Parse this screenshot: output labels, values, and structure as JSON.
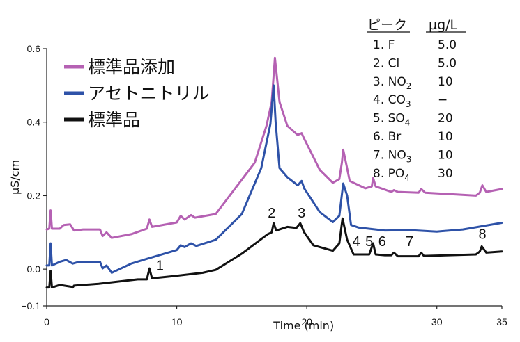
{
  "chart_data": {
    "type": "line",
    "xlabel": "Time (min)",
    "ylabel": "μS/cm",
    "xlim": [
      0,
      35
    ],
    "ylim": [
      -0.1,
      0.6
    ],
    "x_ticks": [
      {
        "value": 0,
        "label": "0"
      },
      {
        "value": 10,
        "label": "10"
      },
      {
        "value": 20,
        "label": "20"
      },
      {
        "value": 30,
        "label": "30"
      },
      {
        "value": 35,
        "label": "35"
      }
    ],
    "y_ticks": [
      {
        "value": 0.6,
        "label": "0.6"
      },
      {
        "value": 0.4,
        "label": "0.4"
      },
      {
        "value": 0.2,
        "label": "0.2"
      },
      {
        "value": 0.0,
        "label": "0.0"
      },
      {
        "value": -0.1,
        "label": "−0.1"
      }
    ],
    "legend": {
      "placement": "top-left",
      "entries": [
        {
          "label": "標準品添加",
          "color": "#b561b3"
        },
        {
          "label": "アセトニトリル",
          "color": "#2e52a8"
        },
        {
          "label": "標準品",
          "color": "#111111"
        }
      ]
    },
    "series": [
      {
        "name": "標準品添加",
        "color": "#b561b3",
        "points": [
          [
            0,
            0.108
          ],
          [
            0.2,
            0.11
          ],
          [
            0.3,
            0.16
          ],
          [
            0.4,
            0.11
          ],
          [
            1,
            0.11
          ],
          [
            1.3,
            0.12
          ],
          [
            1.8,
            0.122
          ],
          [
            2.1,
            0.105
          ],
          [
            2.8,
            0.108
          ],
          [
            4.1,
            0.108
          ],
          [
            4.3,
            0.09
          ],
          [
            4.6,
            0.1
          ],
          [
            5,
            0.085
          ],
          [
            6.5,
            0.095
          ],
          [
            7.7,
            0.11
          ],
          [
            7.9,
            0.135
          ],
          [
            8.1,
            0.115
          ],
          [
            10,
            0.127
          ],
          [
            10.3,
            0.145
          ],
          [
            10.6,
            0.135
          ],
          [
            11.1,
            0.147
          ],
          [
            11.4,
            0.14
          ],
          [
            13,
            0.15
          ],
          [
            16,
            0.29
          ],
          [
            16.9,
            0.39
          ],
          [
            17.3,
            0.455
          ],
          [
            17.55,
            0.575
          ],
          [
            17.9,
            0.455
          ],
          [
            18.5,
            0.39
          ],
          [
            19.3,
            0.365
          ],
          [
            19.6,
            0.37
          ],
          [
            19.8,
            0.355
          ],
          [
            21,
            0.27
          ],
          [
            22,
            0.235
          ],
          [
            22.5,
            0.245
          ],
          [
            22.7,
            0.29
          ],
          [
            22.8,
            0.325
          ],
          [
            22.95,
            0.3
          ],
          [
            23.3,
            0.24
          ],
          [
            24.5,
            0.22
          ],
          [
            25,
            0.225
          ],
          [
            25.1,
            0.248
          ],
          [
            25.3,
            0.225
          ],
          [
            26.5,
            0.21
          ],
          [
            26.7,
            0.215
          ],
          [
            27,
            0.21
          ],
          [
            28.6,
            0.208
          ],
          [
            28.8,
            0.218
          ],
          [
            29.1,
            0.208
          ],
          [
            33,
            0.2
          ],
          [
            33.3,
            0.208
          ],
          [
            33.5,
            0.228
          ],
          [
            33.8,
            0.21
          ],
          [
            35,
            0.218
          ]
        ]
      },
      {
        "name": "アセトニトリル",
        "color": "#2e52a8",
        "points": [
          [
            0,
            0.01
          ],
          [
            0.2,
            0.01
          ],
          [
            0.3,
            0.07
          ],
          [
            0.4,
            0.01
          ],
          [
            1,
            0.02
          ],
          [
            1.5,
            0.025
          ],
          [
            2,
            0.015
          ],
          [
            2.5,
            0.02
          ],
          [
            4.1,
            0.02
          ],
          [
            4.3,
            0.002
          ],
          [
            4.6,
            0.01
          ],
          [
            5,
            -0.01
          ],
          [
            6.5,
            0.015
          ],
          [
            7.7,
            0.028
          ],
          [
            10,
            0.052
          ],
          [
            10.3,
            0.065
          ],
          [
            10.6,
            0.06
          ],
          [
            11.1,
            0.07
          ],
          [
            11.5,
            0.063
          ],
          [
            13,
            0.08
          ],
          [
            15,
            0.15
          ],
          [
            16.5,
            0.275
          ],
          [
            17.2,
            0.395
          ],
          [
            17.45,
            0.5
          ],
          [
            17.6,
            0.4
          ],
          [
            17.9,
            0.275
          ],
          [
            18.5,
            0.25
          ],
          [
            19.3,
            0.228
          ],
          [
            19.6,
            0.24
          ],
          [
            19.8,
            0.22
          ],
          [
            21,
            0.155
          ],
          [
            22,
            0.128
          ],
          [
            22.5,
            0.145
          ],
          [
            22.8,
            0.233
          ],
          [
            23.1,
            0.2
          ],
          [
            23.4,
            0.12
          ],
          [
            24,
            0.113
          ],
          [
            26,
            0.105
          ],
          [
            28,
            0.106
          ],
          [
            30,
            0.102
          ],
          [
            32,
            0.108
          ],
          [
            35,
            0.126
          ]
        ]
      },
      {
        "name": "標準品",
        "color": "#111111",
        "points": [
          [
            0,
            -0.05
          ],
          [
            0.2,
            -0.05
          ],
          [
            0.3,
            -0.005
          ],
          [
            0.4,
            -0.05
          ],
          [
            1,
            -0.043
          ],
          [
            1.9,
            -0.048
          ],
          [
            2,
            -0.05
          ],
          [
            2.1,
            -0.045
          ],
          [
            4,
            -0.04
          ],
          [
            7,
            -0.028
          ],
          [
            7.7,
            -0.028
          ],
          [
            7.9,
            0.002
          ],
          [
            8.1,
            -0.025
          ],
          [
            10,
            -0.018
          ],
          [
            12,
            -0.01
          ],
          [
            13,
            -0.002
          ],
          [
            15,
            0.042
          ],
          [
            17,
            0.095
          ],
          [
            17.3,
            0.1
          ],
          [
            17.45,
            0.125
          ],
          [
            17.65,
            0.105
          ],
          [
            18.5,
            0.115
          ],
          [
            19.2,
            0.112
          ],
          [
            19.5,
            0.125
          ],
          [
            19.8,
            0.1
          ],
          [
            20.5,
            0.065
          ],
          [
            22,
            0.05
          ],
          [
            22.5,
            0.07
          ],
          [
            22.75,
            0.138
          ],
          [
            23.1,
            0.08
          ],
          [
            23.6,
            0.04
          ],
          [
            24.8,
            0.04
          ],
          [
            25.1,
            0.07
          ],
          [
            25.3,
            0.04
          ],
          [
            26,
            0.038
          ],
          [
            26.5,
            0.038
          ],
          [
            26.7,
            0.045
          ],
          [
            27,
            0.035
          ],
          [
            28.6,
            0.035
          ],
          [
            28.8,
            0.045
          ],
          [
            29,
            0.036
          ],
          [
            33,
            0.04
          ],
          [
            33.3,
            0.048
          ],
          [
            33.45,
            0.062
          ],
          [
            33.8,
            0.045
          ],
          [
            35,
            0.048
          ]
        ]
      }
    ],
    "peak_labels": [
      {
        "label": "1",
        "x": 8.7,
        "y": -0.003
      },
      {
        "label": "2",
        "x": 17.3,
        "y": 0.14
      },
      {
        "label": "3",
        "x": 19.6,
        "y": 0.14
      },
      {
        "label": "4",
        "x": 23.8,
        "y": 0.063
      },
      {
        "label": "5",
        "x": 24.8,
        "y": 0.063
      },
      {
        "label": "6",
        "x": 25.8,
        "y": 0.063
      },
      {
        "label": "7",
        "x": 27.9,
        "y": 0.063
      },
      {
        "label": "8",
        "x": 33.5,
        "y": 0.083
      }
    ],
    "table": {
      "headers": [
        "ピーク",
        "µg/L"
      ],
      "rows": [
        {
          "name": "1. F",
          "sub": "",
          "value": "5.0"
        },
        {
          "name": "2. Cl",
          "sub": "",
          "value": "5.0"
        },
        {
          "name": "3. NO",
          "sub": "2",
          "value": "10"
        },
        {
          "name": "4. CO",
          "sub": "3",
          "value": "−"
        },
        {
          "name": "5. SO",
          "sub": "4",
          "value": "20"
        },
        {
          "name": "6. Br",
          "sub": "",
          "value": "10"
        },
        {
          "name": "7. NO",
          "sub": "3",
          "value": "10"
        },
        {
          "name": "8. PO",
          "sub": "4",
          "value": "30"
        }
      ]
    }
  }
}
